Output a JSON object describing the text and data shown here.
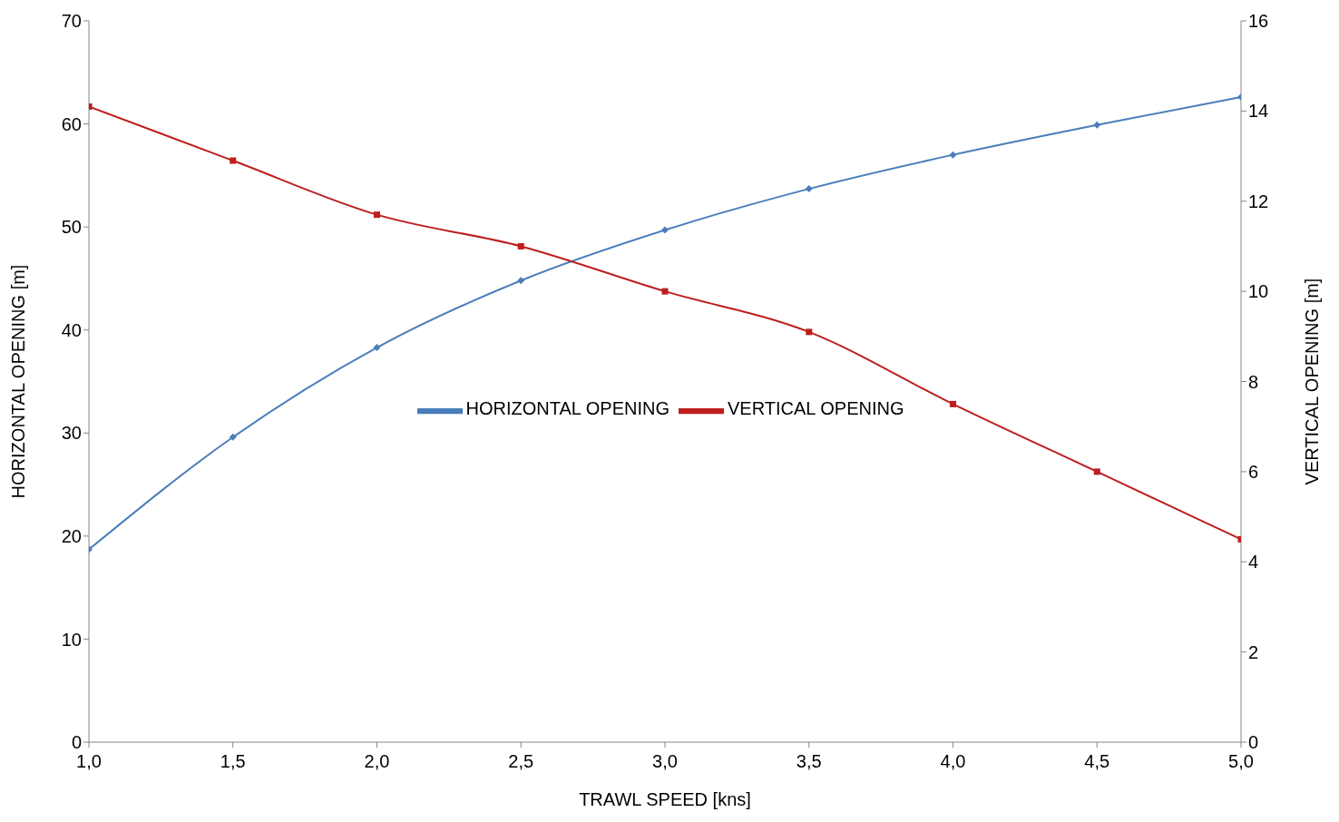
{
  "chart_data": {
    "type": "line",
    "xlabel": "TRAWL SPEED [kns]",
    "ylabel": "HORIZONTAL OPENING [m]",
    "y2label": "VERTICAL OPENING [m]",
    "x": [
      1.0,
      1.5,
      2.0,
      2.5,
      3.0,
      3.5,
      4.0,
      4.5,
      5.0
    ],
    "series": [
      {
        "name": "HORIZONTAL OPENING",
        "color": "#4a7ebb",
        "marker": "diamond",
        "values": [
          18.7,
          29.6,
          38.3,
          44.8,
          49.7,
          53.7,
          57.0,
          59.9,
          62.6
        ]
      },
      {
        "name": "VERTICAL OPENING",
        "color": "#be1e1e",
        "marker": "square",
        "axis": "y2",
        "values": [
          14.1,
          12.9,
          11.7,
          11.0,
          10.0,
          9.1,
          7.5,
          6.0,
          4.5
        ]
      }
    ],
    "xlim": [
      1,
      5
    ],
    "xticks": [
      {
        "value": 1,
        "label": "1,0"
      },
      {
        "value": 1.5,
        "label": "1,5"
      },
      {
        "value": 2,
        "label": "2,0"
      },
      {
        "value": 2.5,
        "label": "2,5"
      },
      {
        "value": 3,
        "label": "3,0"
      },
      {
        "value": 3.5,
        "label": "3,5"
      },
      {
        "value": 4,
        "label": "4,0"
      },
      {
        "value": 4.5,
        "label": "4,5"
      },
      {
        "value": 5,
        "label": "5,0"
      }
    ],
    "ylim": [
      0,
      70
    ],
    "yticks": [
      0,
      10,
      20,
      30,
      40,
      50,
      60,
      70
    ],
    "y2lim": [
      0,
      16
    ],
    "y2ticks": [
      0,
      2,
      4,
      6,
      8,
      10,
      12,
      14,
      16
    ],
    "grid": false,
    "legend": "center",
    "line_style": "solid"
  }
}
